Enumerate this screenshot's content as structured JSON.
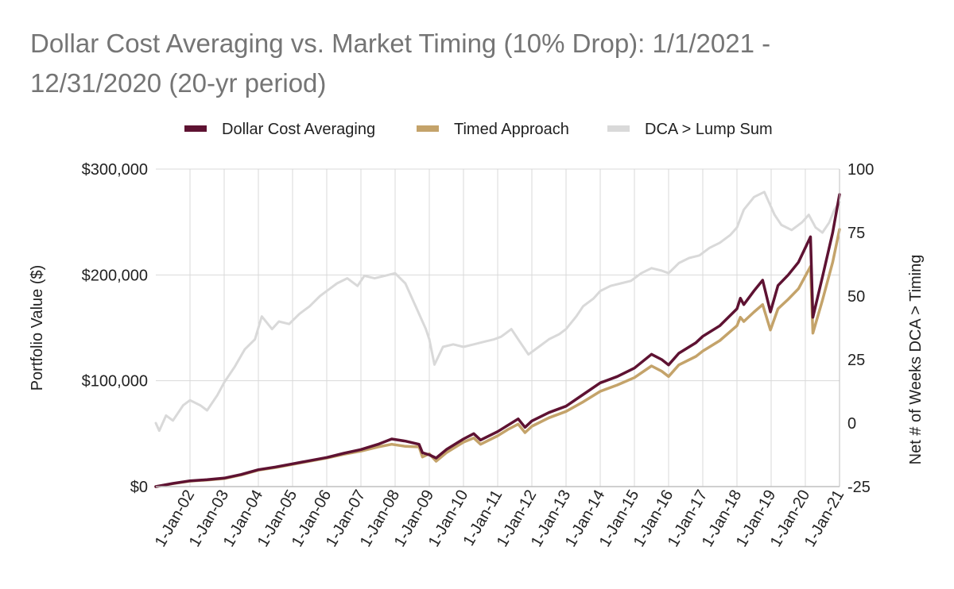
{
  "chart_data": {
    "type": "line",
    "title_line1": "Dollar Cost Averaging vs. Market Timing (10% Drop): 1/1/2021 -",
    "title_line2": "12/31/2020 (20-yr period)",
    "ylabel_left": "Portfolio Value ($)",
    "ylabel_right": "Net # of Weeks DCA > Timing",
    "y_left_range": [
      0,
      300000
    ],
    "y_left_ticks": [
      {
        "value": 0,
        "label": "$0"
      },
      {
        "value": 100000,
        "label": "$100,000"
      },
      {
        "value": 200000,
        "label": "$200,000"
      },
      {
        "value": 300000,
        "label": "$300,000"
      }
    ],
    "y_right_range": [
      -25,
      100
    ],
    "y_right_ticks": [
      {
        "value": -25,
        "label": "-25"
      },
      {
        "value": 0,
        "label": "0"
      },
      {
        "value": 25,
        "label": "25"
      },
      {
        "value": 50,
        "label": "50"
      },
      {
        "value": 75,
        "label": "75"
      },
      {
        "value": 100,
        "label": "100"
      }
    ],
    "x_range": [
      2001.0,
      2021.0
    ],
    "x_ticks": [
      {
        "value": 2002,
        "label": "1-Jan-02"
      },
      {
        "value": 2003,
        "label": "1-Jan-03"
      },
      {
        "value": 2004,
        "label": "1-Jan-04"
      },
      {
        "value": 2005,
        "label": "1-Jan-05"
      },
      {
        "value": 2006,
        "label": "1-Jan-06"
      },
      {
        "value": 2007,
        "label": "1-Jan-07"
      },
      {
        "value": 2008,
        "label": "1-Jan-08"
      },
      {
        "value": 2009,
        "label": "1-Jan-09"
      },
      {
        "value": 2010,
        "label": "1-Jan-10"
      },
      {
        "value": 2011,
        "label": "1-Jan-11"
      },
      {
        "value": 2012,
        "label": "1-Jan-12"
      },
      {
        "value": 2013,
        "label": "1-Jan-13"
      },
      {
        "value": 2014,
        "label": "1-Jan-14"
      },
      {
        "value": 2015,
        "label": "1-Jan-15"
      },
      {
        "value": 2016,
        "label": "1-Jan-16"
      },
      {
        "value": 2017,
        "label": "1-Jan-17"
      },
      {
        "value": 2018,
        "label": "1-Jan-18"
      },
      {
        "value": 2019,
        "label": "1-Jan-19"
      },
      {
        "value": 2020,
        "label": "1-Jan-20"
      },
      {
        "value": 2021,
        "label": "1-Jan-21"
      }
    ],
    "legend": {
      "position": "top-center"
    },
    "series": [
      {
        "name": "Dollar Cost Averaging",
        "color": "#5e1232",
        "axis": "left",
        "points": [
          [
            2001.0,
            0
          ],
          [
            2001.5,
            3000
          ],
          [
            2002.0,
            5500
          ],
          [
            2002.5,
            6500
          ],
          [
            2003.0,
            8000
          ],
          [
            2003.5,
            11500
          ],
          [
            2004.0,
            16000
          ],
          [
            2004.5,
            18500
          ],
          [
            2005.0,
            21500
          ],
          [
            2005.5,
            24500
          ],
          [
            2006.0,
            27500
          ],
          [
            2006.5,
            31500
          ],
          [
            2007.0,
            35000
          ],
          [
            2007.5,
            40000
          ],
          [
            2007.9,
            45000
          ],
          [
            2008.3,
            43000
          ],
          [
            2008.7,
            40000
          ],
          [
            2008.8,
            32000
          ],
          [
            2009.0,
            30000
          ],
          [
            2009.2,
            27000
          ],
          [
            2009.5,
            35000
          ],
          [
            2010.0,
            45000
          ],
          [
            2010.3,
            50000
          ],
          [
            2010.5,
            44000
          ],
          [
            2011.0,
            52000
          ],
          [
            2011.3,
            58000
          ],
          [
            2011.6,
            64000
          ],
          [
            2011.8,
            56000
          ],
          [
            2012.0,
            62000
          ],
          [
            2012.5,
            70000
          ],
          [
            2013.0,
            76000
          ],
          [
            2013.5,
            87000
          ],
          [
            2014.0,
            98000
          ],
          [
            2014.5,
            104000
          ],
          [
            2015.0,
            112000
          ],
          [
            2015.5,
            125000
          ],
          [
            2015.8,
            120000
          ],
          [
            2016.0,
            115000
          ],
          [
            2016.3,
            126000
          ],
          [
            2016.8,
            136000
          ],
          [
            2017.0,
            142000
          ],
          [
            2017.5,
            152000
          ],
          [
            2018.0,
            168000
          ],
          [
            2018.1,
            178000
          ],
          [
            2018.2,
            172000
          ],
          [
            2018.5,
            185000
          ],
          [
            2018.75,
            195000
          ],
          [
            2018.98,
            165000
          ],
          [
            2019.2,
            190000
          ],
          [
            2019.5,
            200000
          ],
          [
            2019.8,
            212000
          ],
          [
            2020.15,
            236000
          ],
          [
            2020.22,
            160000
          ],
          [
            2020.5,
            198000
          ],
          [
            2020.8,
            240000
          ],
          [
            2021.0,
            276000
          ]
        ]
      },
      {
        "name": "Timed Approach",
        "color": "#c4a36a",
        "axis": "left",
        "points": [
          [
            2001.0,
            0
          ],
          [
            2001.5,
            2800
          ],
          [
            2002.0,
            5200
          ],
          [
            2002.5,
            6200
          ],
          [
            2003.0,
            7600
          ],
          [
            2003.5,
            11000
          ],
          [
            2004.0,
            15500
          ],
          [
            2004.5,
            18000
          ],
          [
            2005.0,
            21000
          ],
          [
            2005.5,
            24000
          ],
          [
            2006.0,
            27000
          ],
          [
            2006.5,
            30500
          ],
          [
            2007.0,
            33500
          ],
          [
            2007.5,
            37500
          ],
          [
            2007.9,
            40000
          ],
          [
            2008.3,
            38000
          ],
          [
            2008.7,
            37500
          ],
          [
            2008.8,
            28000
          ],
          [
            2009.0,
            31000
          ],
          [
            2009.2,
            24000
          ],
          [
            2009.5,
            32000
          ],
          [
            2010.0,
            42000
          ],
          [
            2010.3,
            46000
          ],
          [
            2010.5,
            40000
          ],
          [
            2011.0,
            48000
          ],
          [
            2011.3,
            54000
          ],
          [
            2011.6,
            59000
          ],
          [
            2011.8,
            51000
          ],
          [
            2012.0,
            57000
          ],
          [
            2012.5,
            65000
          ],
          [
            2013.0,
            71000
          ],
          [
            2013.5,
            80000
          ],
          [
            2014.0,
            90000
          ],
          [
            2014.5,
            96000
          ],
          [
            2015.0,
            103000
          ],
          [
            2015.5,
            114000
          ],
          [
            2015.8,
            109000
          ],
          [
            2016.0,
            104000
          ],
          [
            2016.3,
            115000
          ],
          [
            2016.8,
            123000
          ],
          [
            2017.0,
            128000
          ],
          [
            2017.5,
            138000
          ],
          [
            2018.0,
            152000
          ],
          [
            2018.1,
            160000
          ],
          [
            2018.2,
            156000
          ],
          [
            2018.5,
            165000
          ],
          [
            2018.75,
            172000
          ],
          [
            2018.98,
            148000
          ],
          [
            2019.2,
            168000
          ],
          [
            2019.5,
            177000
          ],
          [
            2019.8,
            187000
          ],
          [
            2020.15,
            208000
          ],
          [
            2020.22,
            145000
          ],
          [
            2020.5,
            176000
          ],
          [
            2020.8,
            212000
          ],
          [
            2021.0,
            243000
          ]
        ]
      },
      {
        "name": "DCA > Lump Sum",
        "color": "#d9d9d9",
        "axis": "right",
        "points": [
          [
            2001.0,
            0
          ],
          [
            2001.1,
            -3
          ],
          [
            2001.3,
            3
          ],
          [
            2001.5,
            1
          ],
          [
            2001.8,
            7
          ],
          [
            2002.0,
            9
          ],
          [
            2002.3,
            7
          ],
          [
            2002.5,
            5
          ],
          [
            2002.8,
            11
          ],
          [
            2003.0,
            16
          ],
          [
            2003.3,
            22
          ],
          [
            2003.6,
            29
          ],
          [
            2003.9,
            33
          ],
          [
            2004.1,
            42
          ],
          [
            2004.4,
            37
          ],
          [
            2004.6,
            40
          ],
          [
            2004.9,
            39
          ],
          [
            2005.2,
            43
          ],
          [
            2005.5,
            46
          ],
          [
            2005.8,
            50
          ],
          [
            2006.0,
            52
          ],
          [
            2006.3,
            55
          ],
          [
            2006.6,
            57
          ],
          [
            2006.9,
            54
          ],
          [
            2007.1,
            58
          ],
          [
            2007.4,
            57
          ],
          [
            2007.7,
            58
          ],
          [
            2008.0,
            59
          ],
          [
            2008.3,
            55
          ],
          [
            2008.6,
            46
          ],
          [
            2008.9,
            37
          ],
          [
            2009.0,
            33
          ],
          [
            2009.15,
            23
          ],
          [
            2009.4,
            30
          ],
          [
            2009.7,
            31
          ],
          [
            2010.0,
            30
          ],
          [
            2010.3,
            31
          ],
          [
            2010.6,
            32
          ],
          [
            2010.9,
            33
          ],
          [
            2011.1,
            34
          ],
          [
            2011.4,
            37
          ],
          [
            2011.6,
            33
          ],
          [
            2011.9,
            27
          ],
          [
            2012.2,
            30
          ],
          [
            2012.5,
            33
          ],
          [
            2012.8,
            35
          ],
          [
            2013.0,
            37
          ],
          [
            2013.3,
            42
          ],
          [
            2013.5,
            46
          ],
          [
            2013.8,
            49
          ],
          [
            2014.0,
            52
          ],
          [
            2014.3,
            54
          ],
          [
            2014.6,
            55
          ],
          [
            2014.9,
            56
          ],
          [
            2015.2,
            59
          ],
          [
            2015.5,
            61
          ],
          [
            2015.8,
            60
          ],
          [
            2016.0,
            59
          ],
          [
            2016.3,
            63
          ],
          [
            2016.6,
            65
          ],
          [
            2016.9,
            66
          ],
          [
            2017.2,
            69
          ],
          [
            2017.5,
            71
          ],
          [
            2017.8,
            74
          ],
          [
            2018.0,
            77
          ],
          [
            2018.2,
            84
          ],
          [
            2018.5,
            89
          ],
          [
            2018.8,
            91
          ],
          [
            2018.9,
            88
          ],
          [
            2019.1,
            82
          ],
          [
            2019.3,
            78
          ],
          [
            2019.6,
            76
          ],
          [
            2019.9,
            79
          ],
          [
            2020.1,
            82
          ],
          [
            2020.3,
            77
          ],
          [
            2020.5,
            75
          ],
          [
            2020.7,
            79
          ],
          [
            2020.85,
            84
          ],
          [
            2021.0,
            87
          ]
        ]
      }
    ]
  }
}
